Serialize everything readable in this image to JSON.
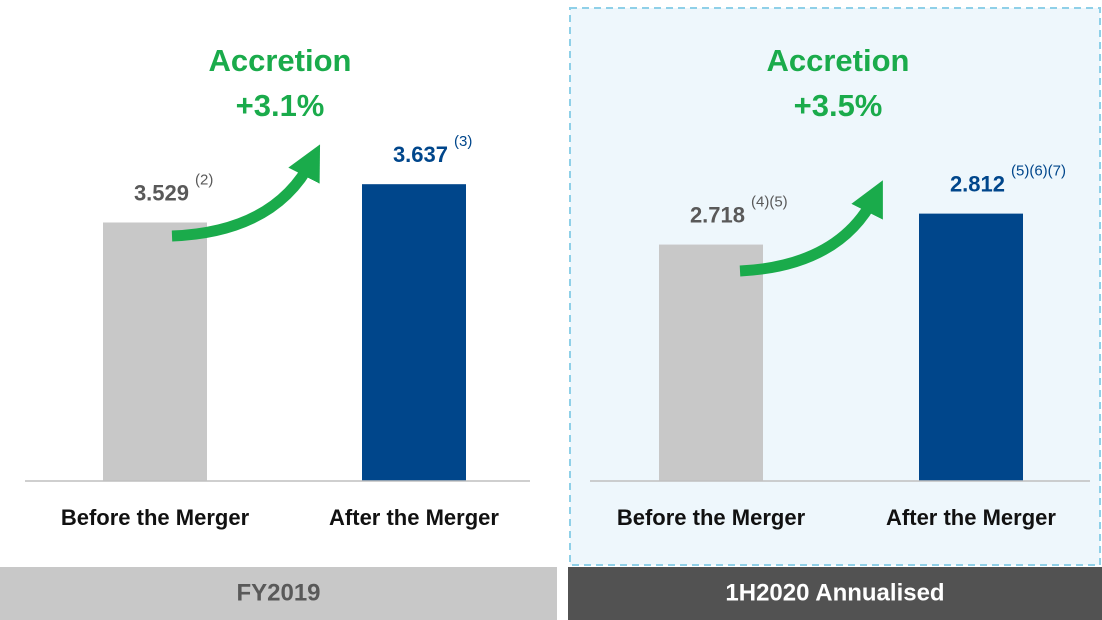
{
  "chart_data": [
    {
      "type": "bar",
      "title": "FY2019",
      "annotations": [
        "Accretion",
        "+3.1%"
      ],
      "categories": [
        "Before the Merger",
        "After the Merger"
      ],
      "values": [
        3.529,
        3.637
      ],
      "notes": [
        "(2)",
        "(3)"
      ],
      "colors": [
        "#c8c8c8",
        "#00468b"
      ],
      "ylim": [
        2.8,
        4.1
      ]
    },
    {
      "type": "bar",
      "title": "1H2020 Annualised",
      "annotations": [
        "Accretion",
        "+3.5%"
      ],
      "categories": [
        "Before the Merger",
        "After the Merger"
      ],
      "values": [
        2.718,
        2.812
      ],
      "notes": [
        "(4)(5)",
        "(5)(6)(7)"
      ],
      "colors": [
        "#c8c8c8",
        "#00468b"
      ],
      "ylim": [
        2.0,
        3.4
      ]
    }
  ]
}
